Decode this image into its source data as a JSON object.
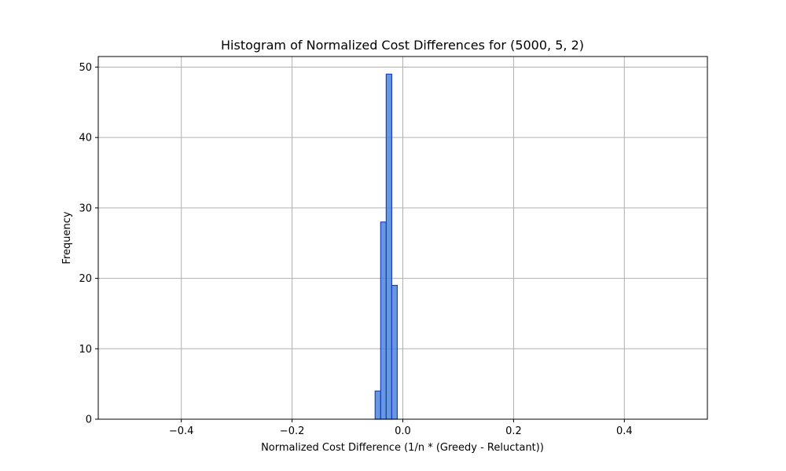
{
  "chart_data": {
    "type": "bar",
    "title": "Histogram of Normalized Cost Differences for (5000, 5, 2)",
    "xlabel": "Normalized Cost Difference (1/n * (Greedy - Reluctant))",
    "ylabel": "Frequency",
    "xlim": [
      -0.55,
      0.55
    ],
    "ylim": [
      0,
      51.5
    ],
    "xticks": [
      -0.4,
      -0.2,
      0.0,
      0.2,
      0.4
    ],
    "xtick_labels": [
      "−0.4",
      "−0.2",
      "0.0",
      "0.2",
      "0.4"
    ],
    "yticks": [
      0,
      10,
      20,
      30,
      40,
      50
    ],
    "ytick_labels": [
      "0",
      "10",
      "20",
      "30",
      "40",
      "50"
    ],
    "grid": true,
    "bin_range": [
      -0.5,
      0.5
    ],
    "bins": [
      {
        "x0": -0.05,
        "x1": -0.04,
        "value": 4
      },
      {
        "x0": -0.04,
        "x1": -0.03,
        "value": 28
      },
      {
        "x0": -0.03,
        "x1": -0.02,
        "value": 49
      },
      {
        "x0": -0.02,
        "x1": -0.01,
        "value": 19
      }
    ],
    "colors": {
      "fill": "#4a86d8",
      "edge": "#1f3fbf"
    }
  }
}
